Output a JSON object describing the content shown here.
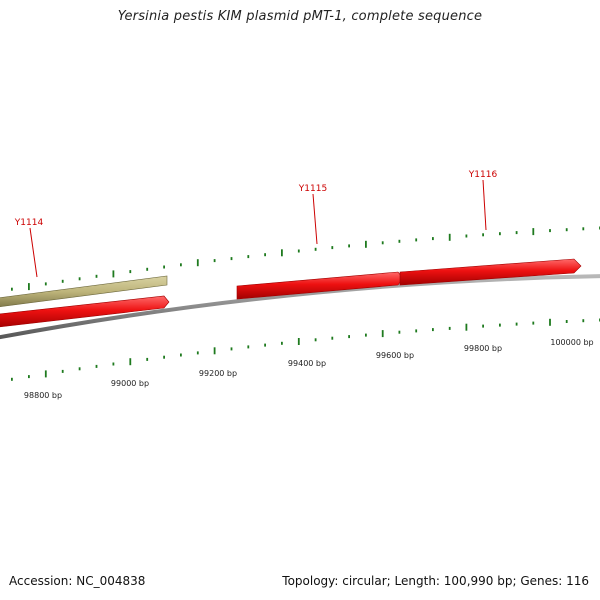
{
  "title": "Yersinia pestis KIM plasmid pMT-1, complete sequence",
  "footer": {
    "accession": "Accession: NC_004838",
    "summary": "Topology: circular; Length: 100,990 bp; Genes: 116"
  },
  "colors": {
    "backbone": "#8a8a8a",
    "gene_forward": "#ee1111",
    "gene_reverse": "#bdb47a",
    "tick": "#1e7a1e",
    "gene_label": "#cc0000",
    "bp_label": "#222222"
  },
  "genes": [
    {
      "label": "Y1114",
      "type": "reverse"
    },
    {
      "label": "Y1115",
      "type": "forward"
    },
    {
      "label": "Y1116",
      "type": "forward"
    }
  ],
  "forward_segment_unlabeled": {
    "type": "forward"
  },
  "bp_labels": [
    "98800 bp",
    "99000 bp",
    "99200 bp",
    "99400 bp",
    "99600 bp",
    "99800 bp",
    "100000 bp"
  ]
}
